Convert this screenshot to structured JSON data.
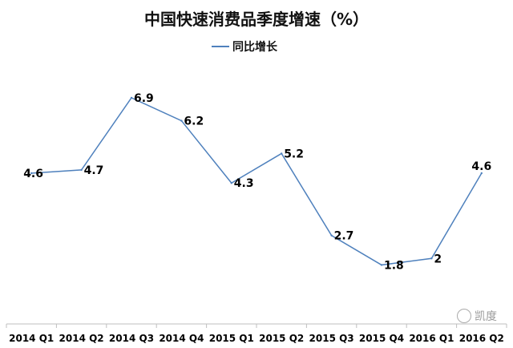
{
  "chart_data": {
    "type": "line",
    "title": "中国快速消费品季度增速（%）",
    "categories": [
      "2014 Q1",
      "2014 Q2",
      "2014 Q3",
      "2014 Q4",
      "2015 Q1",
      "2015 Q2",
      "2015 Q3",
      "2015 Q4",
      "2016 Q1",
      "2016 Q2"
    ],
    "series": [
      {
        "name": "同比增长",
        "values": [
          4.6,
          4.7,
          6.9,
          6.2,
          4.3,
          5.2,
          2.7,
          1.8,
          2,
          4.6
        ],
        "color": "#4f81bd"
      }
    ],
    "data_labels": [
      "4.6",
      "4.7",
      "6.9",
      "6.2",
      "4.3",
      "5.2",
      "2.7",
      "1.8",
      "2",
      "4.6"
    ],
    "ylim": [
      0,
      8
    ],
    "legend_position": "top-center",
    "grid": false
  },
  "watermark": {
    "icon": "wechat-icon",
    "text": "凯度"
  }
}
